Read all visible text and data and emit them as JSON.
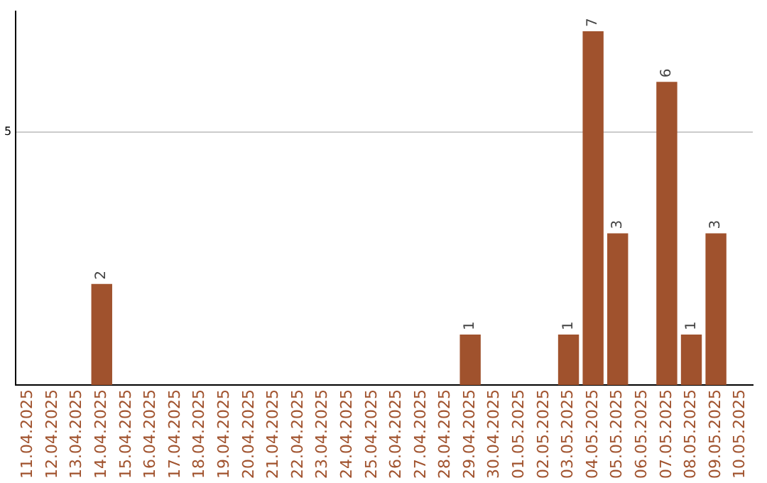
{
  "chart_data": {
    "type": "bar",
    "categories": [
      "11.04.2025",
      "12.04.2025",
      "13.04.2025",
      "14.04.2025",
      "15.04.2025",
      "16.04.2025",
      "17.04.2025",
      "18.04.2025",
      "19.04.2025",
      "20.04.2025",
      "21.04.2025",
      "22.04.2025",
      "23.04.2025",
      "24.04.2025",
      "25.04.2025",
      "26.04.2025",
      "27.04.2025",
      "28.04.2025",
      "29.04.2025",
      "30.04.2025",
      "01.05.2025",
      "02.05.2025",
      "03.05.2025",
      "04.05.2025",
      "05.05.2025",
      "06.05.2025",
      "07.05.2025",
      "08.05.2025",
      "09.05.2025",
      "10.05.2025"
    ],
    "values": [
      0,
      0,
      0,
      2,
      0,
      0,
      0,
      0,
      0,
      0,
      0,
      0,
      0,
      0,
      0,
      0,
      0,
      0,
      1,
      0,
      0,
      0,
      1,
      7,
      3,
      0,
      6,
      1,
      3,
      0
    ],
    "value_labels": [
      null,
      null,
      null,
      "2",
      null,
      null,
      null,
      null,
      null,
      null,
      null,
      null,
      null,
      null,
      null,
      null,
      null,
      null,
      "1",
      null,
      null,
      null,
      "1",
      "7",
      "3",
      null,
      "6",
      "1",
      "3",
      null
    ],
    "color": "#a0522d",
    "ylim": [
      0,
      7.4
    ],
    "yticks": [
      5
    ],
    "grid": "y",
    "legend": false
  }
}
